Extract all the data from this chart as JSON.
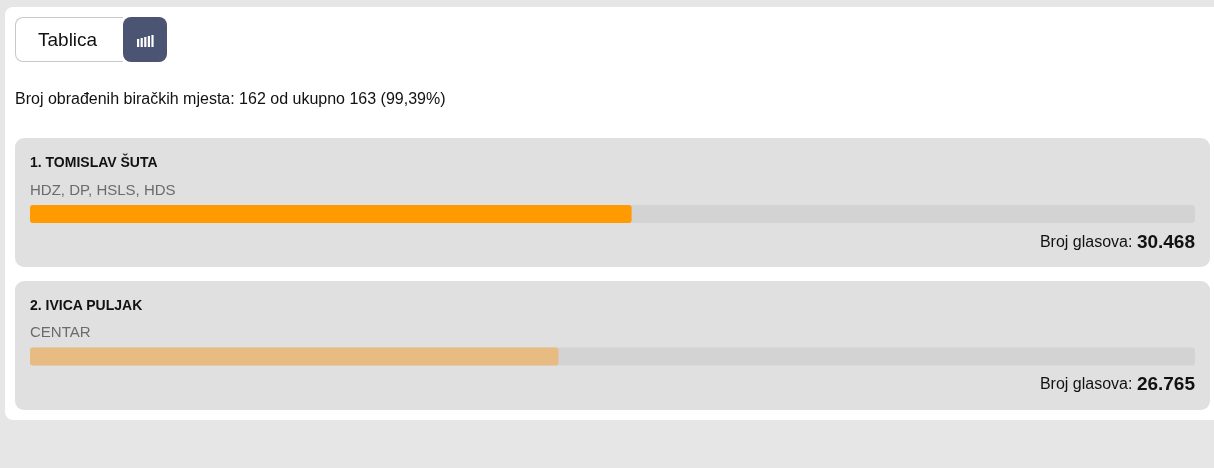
{
  "chart_data": {
    "type": "bar",
    "orientation": "horizontal",
    "subtitle": "Broj obrađenih biračkih mjesta: 162 od ukupno 163 (99,39%)",
    "categories": [
      "1. TOMISLAV ŠUTA",
      "2. IVICA PULJAK"
    ],
    "values": [
      30468,
      26765
    ],
    "colors": [
      "#ff9a00",
      "#e8bb82"
    ],
    "value_labels": [
      "Broj glasova: 30.468",
      "Broj glasova: 26.765"
    ],
    "xlim": [
      0,
      59000
    ],
    "tick_labels": "y",
    "grid": false,
    "annotations": [
      "Tablica",
      "HDZ, DP, HSLS, HDS",
      "CENTAR"
    ]
  }
}
